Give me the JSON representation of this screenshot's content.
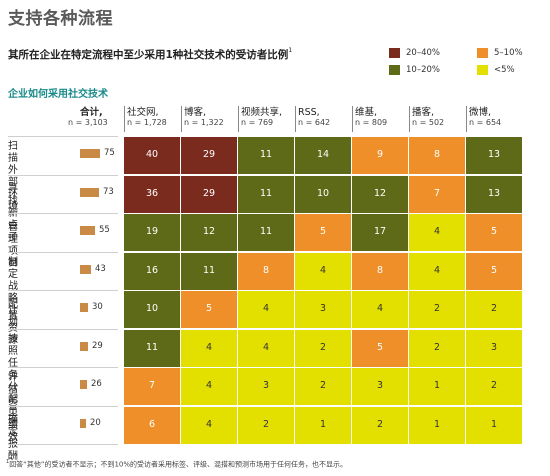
{
  "title": "支持各种流程",
  "subtitle": "其所在企业在特定流程中至少采用1种社交技术的受访者比例",
  "subtitle_footnote_mark": "1",
  "section_label": "企业如何采用社交技术",
  "legend": [
    {
      "label": "20–40%",
      "color": "#7b2a1e"
    },
    {
      "label": "5–10%",
      "color": "#ee8f2a"
    },
    {
      "label": "10–20%",
      "color": "#5e6a17"
    },
    {
      "label": "<5%",
      "color": "#e3e000"
    }
  ],
  "footnote_mark": "1",
  "footnote": "回答“其他”的受访者不显示；不到10%的受访者采用标签、评级、混搭和预测市场用于任何任务，也不显示。",
  "chart_data": {
    "type": "heatmap",
    "total_header": {
      "label": "合计,",
      "n": "n = 3,103"
    },
    "columns": [
      {
        "label": "社交网,",
        "n": "n = 1,728"
      },
      {
        "label": "博客,",
        "n": "n = 1,322"
      },
      {
        "label": "视频共享,",
        "n": "n = 769"
      },
      {
        "label": "RSS,",
        "n": "n = 642"
      },
      {
        "label": "维基,",
        "n": "n = 809"
      },
      {
        "label": "播客,",
        "n": "n = 502"
      },
      {
        "label": "微博,",
        "n": "n = 654"
      }
    ],
    "rows": [
      {
        "label": [
          "扫描外",
          "部环境"
        ],
        "total": 75,
        "values": [
          40,
          29,
          11,
          14,
          9,
          8,
          13
        ]
      },
      {
        "label": [
          "寻找新点子"
        ],
        "total": 73,
        "values": [
          36,
          29,
          11,
          10,
          12,
          7,
          13
        ]
      },
      {
        "label": [
          "管理项目"
        ],
        "total": 55,
        "values": [
          19,
          12,
          11,
          5,
          17,
          4,
          5
        ]
      },
      {
        "label": [
          "制定战",
          "略计划"
        ],
        "total": 43,
        "values": [
          16,
          11,
          8,
          4,
          8,
          4,
          5
        ]
      },
      {
        "label": [
          "配置资源"
        ],
        "total": 30,
        "values": [
          10,
          5,
          4,
          3,
          4,
          2,
          2
        ]
      },
      {
        "label": [
          "按照任务",
          "分配员工"
        ],
        "total": 29,
        "values": [
          11,
          4,
          4,
          2,
          5,
          2,
          3
        ]
      },
      {
        "label": [
          "评估员",
          "工绩效"
        ],
        "total": 26,
        "values": [
          7,
          4,
          3,
          2,
          3,
          1,
          2
        ]
      },
      {
        "label": [
          "确定报酬"
        ],
        "total": 20,
        "values": [
          6,
          4,
          2,
          1,
          2,
          1,
          1
        ]
      }
    ],
    "bins": [
      {
        "range": "20–40%",
        "color": "#7b2a1e"
      },
      {
        "range": "10–20%",
        "color": "#5e6a17"
      },
      {
        "range": "5–10%",
        "color": "#ee8f2a"
      },
      {
        "range": "<5%",
        "color": "#e3e000"
      }
    ],
    "bar_color": "#c98a45"
  }
}
